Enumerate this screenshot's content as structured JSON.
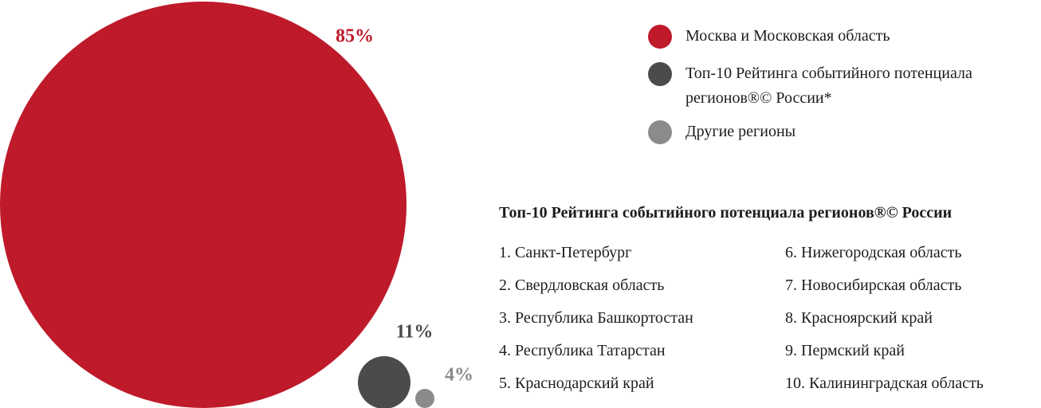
{
  "chart_data": {
    "type": "bubble",
    "categories": [
      "Москва и Московская область",
      "Топ-10 Рейтинга событийного потенциала регионов®© России*",
      "Другие регионы"
    ],
    "values": [
      85,
      11,
      4
    ],
    "value_labels": [
      "85%",
      "11%",
      "4%"
    ],
    "colors": [
      "#be1a2a",
      "#4a4b4d",
      "#8b8b8d"
    ]
  },
  "ranking": {
    "title": "Топ-10  Рейтинга событийного потенциала регионов®©  России",
    "items": [
      "1. Санкт-Петербург",
      "2. Свердловская область",
      "3. Республика Башкортостан",
      "4. Республика Татарстан",
      "5. Краснодарский край",
      "6. Нижегородская область",
      "7. Новосибирская область",
      "8. Красноярский край",
      "9. Пермский край",
      "10. Калининградская область"
    ]
  }
}
